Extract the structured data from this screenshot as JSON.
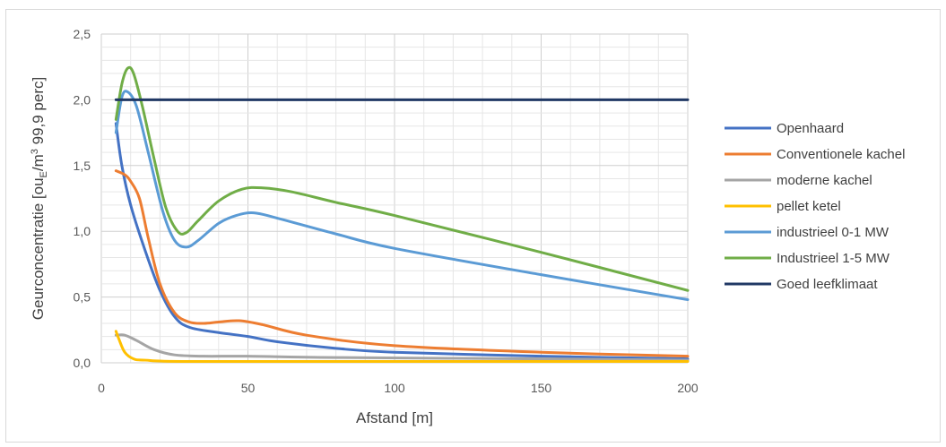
{
  "chart_data": {
    "type": "line",
    "xlabel": "Afstand [m]",
    "ylabel": "Geurconcentratie [ou",
    "ylabel_sub": "E",
    "ylabel_mid": "/m",
    "ylabel_sup": "3",
    "ylabel_end": " 99,9 perc]",
    "xlim": [
      0,
      200
    ],
    "ylim": [
      0,
      2.5
    ],
    "x_ticks": [
      0,
      50,
      100,
      150,
      200
    ],
    "x_tick_labels": [
      "0",
      "50",
      "100",
      "150",
      "200"
    ],
    "y_ticks": [
      0,
      0.5,
      1.0,
      1.5,
      2.0,
      2.5
    ],
    "y_tick_labels": [
      "0,0",
      "0,5",
      "1,0",
      "1,5",
      "2,0",
      "2,5"
    ],
    "grid": true,
    "legend_position": "right",
    "series": [
      {
        "name": "Openhaard",
        "color": "#4472c4",
        "points": [
          [
            5,
            1.82
          ],
          [
            7,
            1.5
          ],
          [
            10,
            1.2
          ],
          [
            15,
            0.85
          ],
          [
            20,
            0.55
          ],
          [
            25,
            0.35
          ],
          [
            30,
            0.27
          ],
          [
            40,
            0.23
          ],
          [
            50,
            0.2
          ],
          [
            60,
            0.16
          ],
          [
            80,
            0.11
          ],
          [
            100,
            0.08
          ],
          [
            150,
            0.05
          ],
          [
            200,
            0.03
          ]
        ]
      },
      {
        "name": "Conventionele kachel",
        "color": "#ed7d31",
        "points": [
          [
            5,
            1.46
          ],
          [
            8,
            1.43
          ],
          [
            10,
            1.38
          ],
          [
            13,
            1.25
          ],
          [
            16,
            0.95
          ],
          [
            20,
            0.6
          ],
          [
            25,
            0.38
          ],
          [
            30,
            0.31
          ],
          [
            35,
            0.3
          ],
          [
            40,
            0.31
          ],
          [
            47,
            0.32
          ],
          [
            55,
            0.29
          ],
          [
            70,
            0.21
          ],
          [
            100,
            0.13
          ],
          [
            150,
            0.08
          ],
          [
            200,
            0.05
          ]
        ]
      },
      {
        "name": "moderne kachel",
        "color": "#a5a5a5",
        "points": [
          [
            5,
            0.21
          ],
          [
            8,
            0.21
          ],
          [
            12,
            0.17
          ],
          [
            18,
            0.1
          ],
          [
            25,
            0.06
          ],
          [
            35,
            0.05
          ],
          [
            50,
            0.05
          ],
          [
            80,
            0.04
          ],
          [
            150,
            0.03
          ],
          [
            200,
            0.02
          ]
        ]
      },
      {
        "name": "pellet ketel",
        "color": "#ffc000",
        "points": [
          [
            5,
            0.24
          ],
          [
            6,
            0.18
          ],
          [
            8,
            0.08
          ],
          [
            11,
            0.03
          ],
          [
            15,
            0.02
          ],
          [
            30,
            0.01
          ],
          [
            100,
            0.01
          ],
          [
            200,
            0.01
          ]
        ]
      },
      {
        "name": "industrieel 0-1 MW",
        "color": "#5b9bd5",
        "points": [
          [
            5,
            1.75
          ],
          [
            7,
            2.02
          ],
          [
            9,
            2.06
          ],
          [
            12,
            1.95
          ],
          [
            16,
            1.6
          ],
          [
            21,
            1.15
          ],
          [
            25,
            0.93
          ],
          [
            29,
            0.88
          ],
          [
            33,
            0.93
          ],
          [
            40,
            1.06
          ],
          [
            46,
            1.12
          ],
          [
            52,
            1.14
          ],
          [
            60,
            1.1
          ],
          [
            80,
            0.98
          ],
          [
            100,
            0.87
          ],
          [
            150,
            0.67
          ],
          [
            200,
            0.48
          ]
        ]
      },
      {
        "name": "Industrieel 1-5 MW",
        "color": "#70ad47",
        "points": [
          [
            5,
            1.85
          ],
          [
            7,
            2.12
          ],
          [
            9,
            2.24
          ],
          [
            11,
            2.2
          ],
          [
            14,
            1.95
          ],
          [
            18,
            1.55
          ],
          [
            22,
            1.18
          ],
          [
            26,
            1.0
          ],
          [
            29,
            0.99
          ],
          [
            33,
            1.08
          ],
          [
            40,
            1.23
          ],
          [
            48,
            1.32
          ],
          [
            55,
            1.33
          ],
          [
            65,
            1.3
          ],
          [
            80,
            1.22
          ],
          [
            100,
            1.12
          ],
          [
            150,
            0.84
          ],
          [
            200,
            0.55
          ]
        ]
      },
      {
        "name": "Goed leefklimaat",
        "color": "#203864",
        "points": [
          [
            5,
            2.0
          ],
          [
            200,
            2.0
          ]
        ]
      }
    ]
  }
}
